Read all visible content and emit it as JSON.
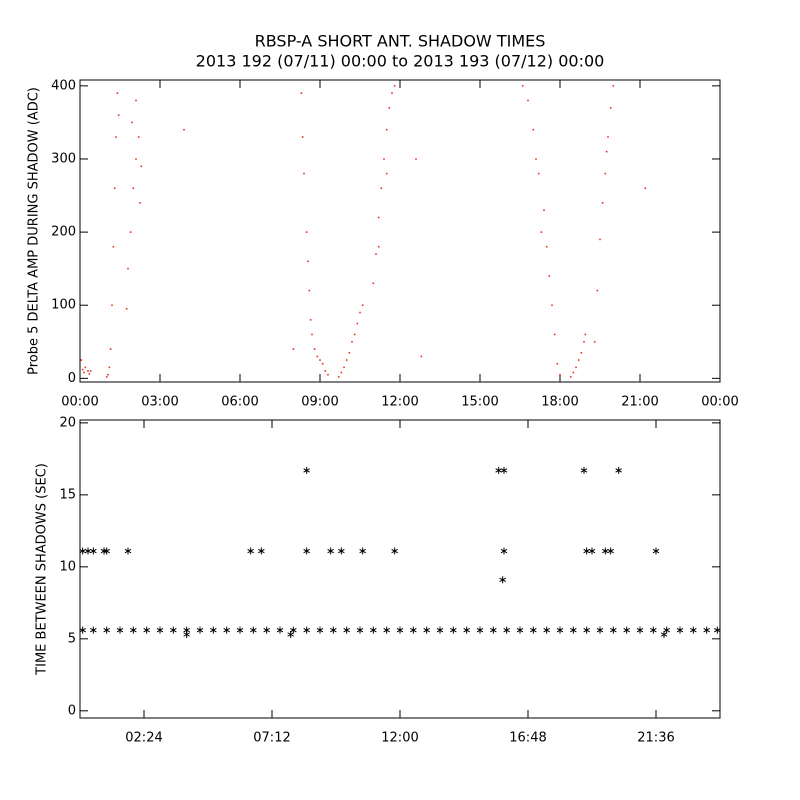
{
  "chart_data": [
    {
      "type": "scatter",
      "title": "RBSP-A SHORT ANT. SHADOW TIMES",
      "subtitle": "2013 192 (07/11) 00:00 to 2013 193 (07/12) 00:00",
      "y_label": "Probe 5 DELTA AMP DURING SHADOW (ADC)",
      "color": "#e8321e",
      "marker": "dot",
      "xlim": [
        0,
        24
      ],
      "ylim": [
        -5,
        408
      ],
      "xticks": [
        {
          "value": 0,
          "label": "00:00"
        },
        {
          "value": 3,
          "label": "03:00"
        },
        {
          "value": 6,
          "label": "06:00"
        },
        {
          "value": 9,
          "label": "09:00"
        },
        {
          "value": 12,
          "label": "12:00"
        },
        {
          "value": 15,
          "label": "15:00"
        },
        {
          "value": 18,
          "label": "18:00"
        },
        {
          "value": 21,
          "label": "21:00"
        },
        {
          "value": 24,
          "label": "00:00"
        }
      ],
      "yticks": [
        0,
        100,
        200,
        300,
        400
      ],
      "x": [
        0.05,
        0.1,
        0.15,
        0.2,
        0.3,
        0.35,
        0.4,
        1.0,
        1.05,
        1.1,
        1.15,
        1.2,
        1.25,
        1.3,
        1.35,
        1.4,
        1.45,
        1.75,
        1.8,
        1.9,
        2.0,
        2.1,
        2.2,
        2.3,
        2.1,
        1.95,
        2.25,
        3.9,
        8.3,
        8.35,
        8.4,
        8.5,
        8.55,
        8.6,
        8.65,
        8.7,
        8.8,
        8.9,
        9.0,
        9.1,
        9.2,
        9.3,
        8.0,
        9.7,
        9.8,
        9.9,
        10.0,
        10.1,
        10.2,
        10.3,
        10.4,
        10.5,
        10.6,
        11.0,
        11.1,
        11.2,
        11.3,
        11.4,
        11.5,
        11.6,
        11.7,
        11.8,
        11.2,
        11.5,
        12.6,
        12.8,
        16.6,
        16.8,
        17.0,
        17.2,
        17.4,
        17.5,
        17.6,
        17.7,
        17.8,
        17.9,
        18.0,
        17.3,
        17.1,
        18.4,
        18.5,
        18.6,
        18.7,
        18.8,
        18.9,
        18.95,
        19.3,
        19.4,
        19.5,
        19.6,
        19.7,
        19.8,
        19.9,
        20.0,
        19.75,
        21.2
      ],
      "values": [
        25,
        12,
        8,
        15,
        10,
        6,
        10,
        2,
        5,
        15,
        40,
        100,
        180,
        260,
        330,
        390,
        360,
        95,
        150,
        200,
        260,
        300,
        330,
        290,
        380,
        350,
        240,
        340,
        390,
        330,
        280,
        200,
        160,
        120,
        80,
        60,
        40,
        30,
        25,
        20,
        10,
        5,
        40,
        2,
        8,
        15,
        25,
        35,
        50,
        60,
        75,
        90,
        100,
        130,
        170,
        220,
        260,
        300,
        340,
        370,
        390,
        400,
        180,
        280,
        300,
        30,
        400,
        380,
        340,
        280,
        230,
        180,
        140,
        100,
        60,
        20,
        5,
        200,
        300,
        2,
        8,
        15,
        25,
        35,
        50,
        60,
        50,
        120,
        190,
        240,
        280,
        330,
        370,
        400,
        310,
        260
      ]
    },
    {
      "type": "scatter",
      "y_label": "TIME BETWEEN SHADOWS (SEC)",
      "color": "#000000",
      "marker": "asterisk",
      "xlim": [
        0,
        24
      ],
      "ylim": [
        -0.5,
        20.2
      ],
      "xticks": [
        {
          "value": 2.4,
          "label": "02:24"
        },
        {
          "value": 7.2,
          "label": "07:12"
        },
        {
          "value": 12,
          "label": "12:00"
        },
        {
          "value": 16.8,
          "label": "16:48"
        },
        {
          "value": 21.6,
          "label": "21:36"
        }
      ],
      "yticks": [
        0,
        5,
        10,
        15,
        20
      ],
      "x": [
        0.1,
        0.5,
        1.0,
        1.5,
        2.0,
        2.5,
        3.0,
        3.5,
        4.0,
        4.5,
        5.0,
        5.5,
        6.0,
        6.5,
        7.0,
        7.5,
        8.0,
        8.5,
        9.0,
        9.5,
        10.0,
        10.5,
        11.0,
        11.5,
        12.0,
        12.5,
        13.0,
        13.5,
        14.0,
        14.5,
        15.0,
        15.5,
        16.0,
        16.5,
        17.0,
        17.5,
        18.0,
        18.5,
        19.0,
        19.5,
        20.0,
        20.5,
        21.0,
        21.5,
        22.0,
        22.5,
        23.0,
        23.5,
        23.9,
        4.0,
        7.9,
        21.9,
        0.1,
        0.3,
        0.5,
        0.9,
        1.0,
        1.8,
        6.4,
        6.8,
        8.5,
        9.4,
        9.8,
        10.6,
        11.8,
        15.9,
        19.0,
        19.2,
        19.7,
        19.9,
        21.6,
        8.5,
        15.7,
        15.9,
        18.9,
        20.2,
        15.85
      ],
      "values": [
        5.6,
        5.6,
        5.6,
        5.6,
        5.6,
        5.6,
        5.6,
        5.6,
        5.6,
        5.6,
        5.6,
        5.6,
        5.6,
        5.6,
        5.6,
        5.6,
        5.6,
        5.6,
        5.6,
        5.6,
        5.6,
        5.6,
        5.6,
        5.6,
        5.6,
        5.6,
        5.6,
        5.6,
        5.6,
        5.6,
        5.6,
        5.6,
        5.6,
        5.6,
        5.6,
        5.6,
        5.6,
        5.6,
        5.6,
        5.6,
        5.6,
        5.6,
        5.6,
        5.6,
        5.6,
        5.6,
        5.6,
        5.6,
        5.6,
        5.3,
        5.3,
        5.3,
        11.1,
        11.1,
        11.1,
        11.1,
        11.1,
        11.1,
        11.1,
        11.1,
        11.1,
        11.1,
        11.1,
        11.1,
        11.1,
        11.1,
        11.1,
        11.1,
        11.1,
        11.1,
        11.1,
        16.7,
        16.7,
        16.7,
        16.7,
        16.7,
        9.1
      ]
    }
  ]
}
